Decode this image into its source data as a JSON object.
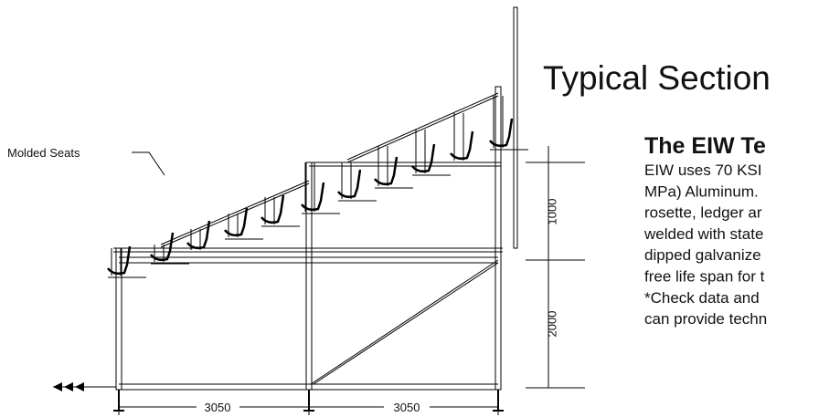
{
  "diagram": {
    "callout": "Molded Seats",
    "title": "Typical Section",
    "heading": "The EIW Te",
    "body_lines": [
      "EIW uses 70 KSI",
      "MPa) Aluminum.",
      "rosette, ledger ar",
      "welded with state",
      "dipped galvanize",
      "free life span for t",
      "*Check data and",
      "can provide techn"
    ],
    "dimensions": {
      "upper_height": "1000",
      "lower_height": "2000",
      "left_span": "3050",
      "right_span": "3050"
    }
  }
}
